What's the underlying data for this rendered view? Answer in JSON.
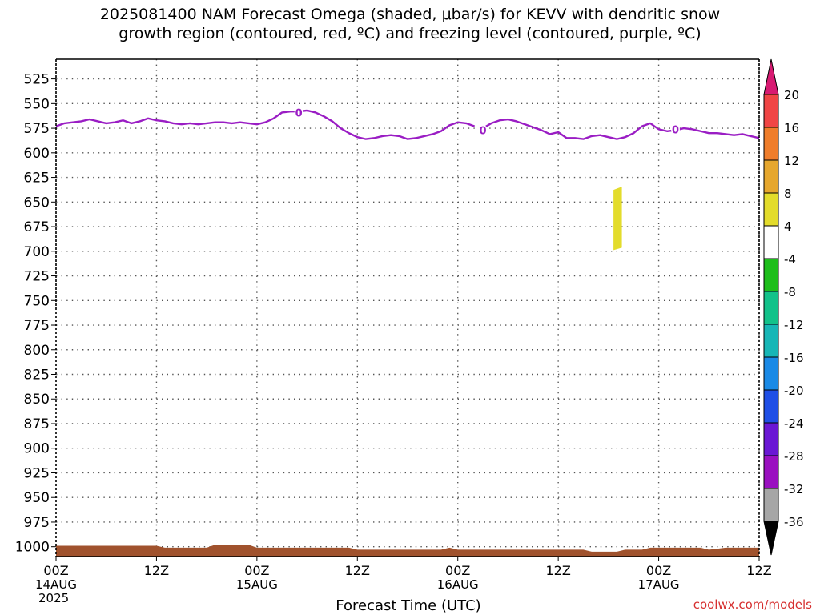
{
  "title": {
    "line1": "2025081400 NAM Forecast Omega (shaded, μbar/s) for KEVV with dendritic snow",
    "line2": "growth region (contoured, red, ºC) and freezing level (contoured, purple, ºC)"
  },
  "x_axis": {
    "label": "Forecast Time (UTC)",
    "year": "2025",
    "ticks": [
      {
        "hour": 0,
        "label": "00Z",
        "date": "14AUG"
      },
      {
        "hour": 12,
        "label": "12Z",
        "date": ""
      },
      {
        "hour": 24,
        "label": "00Z",
        "date": "15AUG"
      },
      {
        "hour": 36,
        "label": "12Z",
        "date": ""
      },
      {
        "hour": 48,
        "label": "00Z",
        "date": "16AUG"
      },
      {
        "hour": 60,
        "label": "12Z",
        "date": ""
      },
      {
        "hour": 72,
        "label": "00Z",
        "date": "17AUG"
      },
      {
        "hour": 84,
        "label": "12Z",
        "date": ""
      }
    ]
  },
  "credit": "coolwx.com/models",
  "chart_data": {
    "type": "area",
    "xlim": [
      0,
      84
    ],
    "ylim": [
      1010,
      505
    ],
    "y_ticks": [
      525,
      550,
      575,
      600,
      625,
      650,
      675,
      700,
      725,
      750,
      775,
      800,
      825,
      850,
      875,
      900,
      925,
      950,
      975,
      1000
    ],
    "grid": true,
    "freezing_level": {
      "label": "0",
      "color": "#9a1dc4",
      "segments": [
        [
          [
            0,
            573
          ],
          [
            1,
            570
          ],
          [
            2,
            569
          ],
          [
            3,
            568
          ],
          [
            4,
            566
          ],
          [
            5,
            568
          ],
          [
            6,
            570
          ],
          [
            7,
            569
          ],
          [
            8,
            567
          ],
          [
            9,
            570
          ],
          [
            10,
            568
          ],
          [
            11,
            565
          ],
          [
            12,
            567
          ],
          [
            13,
            568
          ],
          [
            14,
            570
          ],
          [
            15,
            571
          ],
          [
            16,
            570
          ],
          [
            17,
            571
          ],
          [
            18,
            570
          ],
          [
            19,
            569
          ],
          [
            20,
            569
          ],
          [
            21,
            570
          ],
          [
            22,
            569
          ],
          [
            23,
            570
          ],
          [
            24,
            571
          ],
          [
            25,
            569
          ],
          [
            26,
            565
          ],
          [
            27,
            559
          ],
          [
            28,
            558
          ],
          [
            29,
            558
          ],
          [
            30,
            557
          ],
          [
            31,
            559
          ],
          [
            32,
            563
          ],
          [
            33,
            568
          ],
          [
            34,
            575
          ],
          [
            35,
            580
          ],
          [
            36,
            584
          ],
          [
            37,
            586
          ],
          [
            38,
            585
          ],
          [
            39,
            583
          ],
          [
            40,
            582
          ],
          [
            41,
            583
          ],
          [
            42,
            586
          ],
          [
            43,
            585
          ],
          [
            44,
            583
          ],
          [
            45,
            581
          ],
          [
            46,
            578
          ],
          [
            47,
            572
          ],
          [
            48,
            569
          ],
          [
            49,
            570
          ],
          [
            50,
            573
          ]
        ],
        [
          [
            51,
            575
          ],
          [
            52,
            570
          ],
          [
            53,
            567
          ],
          [
            54,
            566
          ],
          [
            55,
            568
          ],
          [
            56,
            571
          ],
          [
            57,
            574
          ],
          [
            58,
            577
          ],
          [
            59,
            581
          ],
          [
            60,
            579
          ],
          [
            61,
            585
          ],
          [
            62,
            585
          ],
          [
            63,
            586
          ],
          [
            64,
            583
          ],
          [
            65,
            582
          ],
          [
            66,
            584
          ],
          [
            67,
            586
          ],
          [
            68,
            584
          ],
          [
            69,
            580
          ],
          [
            70,
            573
          ],
          [
            71,
            570
          ],
          [
            72,
            576
          ],
          [
            73,
            578
          ],
          [
            74,
            577
          ],
          [
            75,
            575
          ],
          [
            76,
            576
          ],
          [
            77,
            578
          ],
          [
            78,
            580
          ],
          [
            79,
            580
          ],
          [
            80,
            581
          ],
          [
            81,
            582
          ],
          [
            82,
            581
          ],
          [
            83,
            583
          ],
          [
            84,
            585
          ],
          [
            85,
            584
          ],
          [
            86,
            586
          ],
          [
            87,
            587
          ],
          [
            88,
            588
          ]
        ]
      ],
      "label_points": [
        [
          29,
          559
        ],
        [
          51,
          577
        ],
        [
          74,
          576
        ]
      ]
    },
    "omega_shading": [
      {
        "x": [
          66.6,
          67.6
        ],
        "y": [
          636,
          698
        ],
        "color": "#e3dc2c"
      }
    ],
    "terrain": {
      "color": "#a0522d",
      "surface_pressure": [
        [
          0,
          999
        ],
        [
          12,
          999
        ],
        [
          13,
          1001
        ],
        [
          18,
          1001
        ],
        [
          19,
          998
        ],
        [
          23,
          998
        ],
        [
          24,
          1001
        ],
        [
          35,
          1001
        ],
        [
          36,
          1003
        ],
        [
          46,
          1003
        ],
        [
          47,
          1001
        ],
        [
          48,
          1003
        ],
        [
          63,
          1003
        ],
        [
          64,
          1005
        ],
        [
          67,
          1005
        ],
        [
          68,
          1003
        ],
        [
          70,
          1003
        ],
        [
          71,
          1001
        ],
        [
          77,
          1001
        ],
        [
          78,
          1003
        ],
        [
          80,
          1001
        ],
        [
          88,
          1001
        ]
      ]
    },
    "colorbar": {
      "levels": [
        "20",
        "16",
        "12",
        "8",
        "4",
        "-4",
        "-8",
        "-12",
        "-16",
        "-20",
        "-24",
        "-28",
        "-32",
        "-36"
      ],
      "colors": [
        "#d81a72",
        "#f04545",
        "#ef7d2b",
        "#e6a72e",
        "#e3dc2c",
        "#ffffff",
        "#1dbe1b",
        "#12c28a",
        "#17b6b6",
        "#1a8ae6",
        "#1f4fe6",
        "#6a17d4",
        "#9a10c0",
        "#a6a6a6",
        "#000000"
      ]
    }
  }
}
